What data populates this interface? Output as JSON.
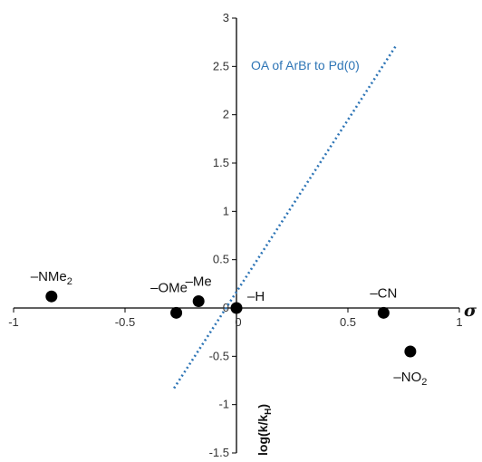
{
  "chart_data": {
    "type": "scatter",
    "title": "",
    "xlabel": "σ",
    "ylabel": "log(k/k",
    "ylabel_sub": "H",
    "ylabel_close": ")",
    "xlim": [
      -1,
      1
    ],
    "ylim": [
      -1.5,
      3
    ],
    "x_ticks": [
      -1,
      -0.5,
      0,
      0.5,
      1
    ],
    "x_tick_labels": [
      "-1",
      "-0.5",
      "0",
      "0.5",
      "1"
    ],
    "y_ticks": [
      -1.5,
      -1,
      -0.5,
      0,
      0.5,
      1,
      1.5,
      2,
      2.5,
      3
    ],
    "y_tick_labels": [
      "-1.5",
      "-1",
      "-0.5",
      "0",
      "0.5",
      "1",
      "1.5",
      "2",
      "2.5",
      "3"
    ],
    "grid": false,
    "points": [
      {
        "label": "–NMe",
        "sub": "2",
        "x": -0.83,
        "y": 0.12,
        "label_pos": "above"
      },
      {
        "label": "–OMe",
        "sub": "",
        "x": -0.27,
        "y": -0.05,
        "label_pos": "above-left"
      },
      {
        "label": "–Me",
        "sub": "",
        "x": -0.17,
        "y": 0.07,
        "label_pos": "above"
      },
      {
        "label": "–H",
        "sub": "",
        "x": 0.0,
        "y": 0.0,
        "label_pos": "right"
      },
      {
        "label": "–CN",
        "sub": "",
        "x": 0.66,
        "y": -0.05,
        "label_pos": "above"
      },
      {
        "label": "–NO",
        "sub": "2",
        "x": 0.78,
        "y": -0.45,
        "label_pos": "below"
      }
    ],
    "reference_line": {
      "name": "OA of ArBr to Pd(0)",
      "x": [
        -0.28,
        0.72
      ],
      "y": [
        -0.83,
        2.73
      ],
      "style": "dotted",
      "color": "#2e75b6"
    },
    "point_color": "#000000",
    "axis_color": "#000000"
  }
}
